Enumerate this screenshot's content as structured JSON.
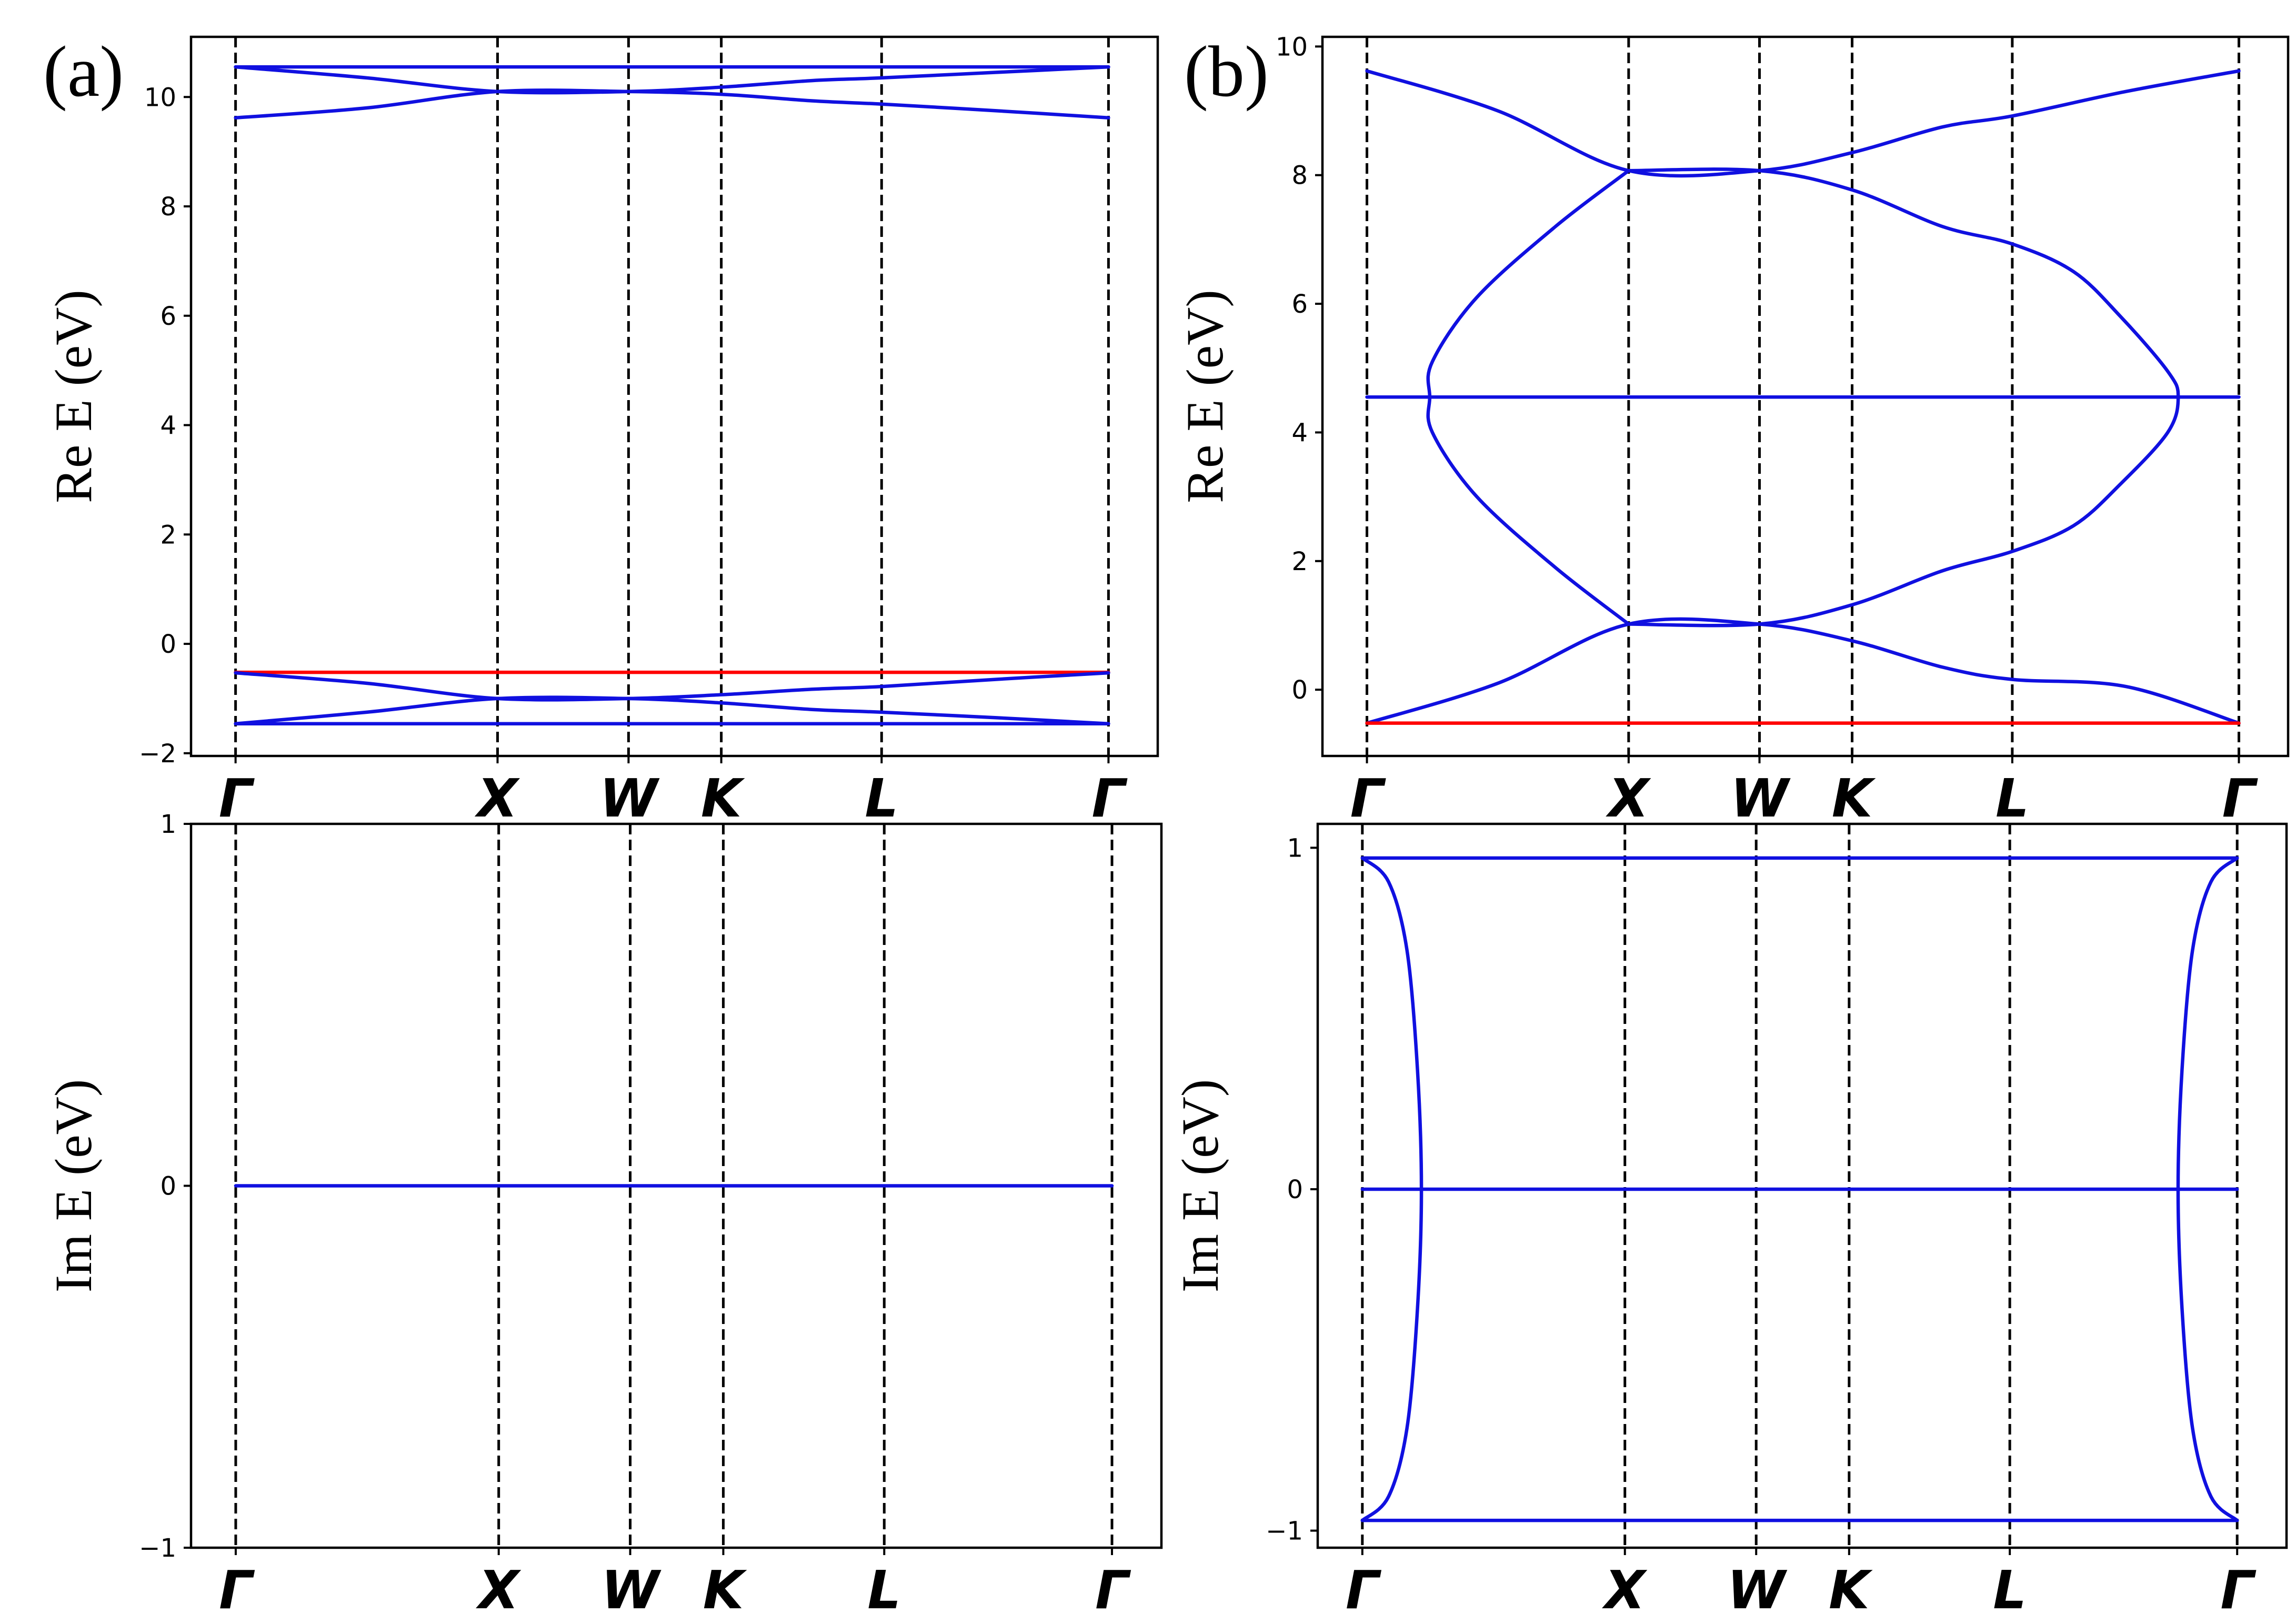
{
  "chart_data": [
    {
      "panel": "(a)",
      "type": "line",
      "ylabel": "Re E (eV)",
      "ylim": [
        -2.05,
        11.1
      ],
      "yticks": [
        -2,
        0,
        2,
        4,
        6,
        8,
        10
      ],
      "x_ticks": [
        "Γ",
        "X",
        "W",
        "K",
        "L",
        "Γ"
      ],
      "x_tick_positions": [
        0,
        1,
        1.5,
        1.854,
        2.466,
        3.332
      ],
      "xlim": [
        -0.17,
        3.52
      ],
      "grid": false,
      "series": [
        {
          "color": "#1010e0",
          "x": [
            0,
            1,
            1.5,
            1.854,
            2.466,
            3.332
          ],
          "y": [
            10.55,
            10.55,
            10.55,
            10.55,
            10.55,
            10.55
          ]
        },
        {
          "color": "#1010e0",
          "x": [
            0,
            0.5,
            1,
            1.5,
            1.854,
            2.2,
            2.466,
            2.9,
            3.332
          ],
          "y": [
            10.55,
            10.35,
            10.1,
            10.1,
            10.18,
            10.3,
            10.35,
            10.45,
            10.55
          ]
        },
        {
          "color": "#1010e0",
          "x": [
            0,
            0.5,
            1,
            1.5,
            1.854,
            2.2,
            2.466,
            2.9,
            3.332
          ],
          "y": [
            9.62,
            9.8,
            10.1,
            10.1,
            10.05,
            9.93,
            9.87,
            9.75,
            9.62
          ]
        },
        {
          "color": "#ff0000",
          "x": [
            0,
            3.332
          ],
          "y": [
            -0.52,
            -0.52
          ]
        },
        {
          "color": "#1010e0",
          "x": [
            0,
            0.5,
            1,
            1.5,
            1.854,
            2.2,
            2.466,
            2.9,
            3.332
          ],
          "y": [
            -0.53,
            -0.72,
            -1.0,
            -1.0,
            -0.93,
            -0.83,
            -0.78,
            -0.65,
            -0.53
          ]
        },
        {
          "color": "#1010e0",
          "x": [
            0,
            0.5,
            1,
            1.5,
            1.854,
            2.2,
            2.466,
            2.9,
            3.332
          ],
          "y": [
            -1.46,
            -1.25,
            -1.0,
            -1.0,
            -1.08,
            -1.2,
            -1.25,
            -1.35,
            -1.46
          ]
        },
        {
          "color": "#1010e0",
          "x": [
            0,
            1,
            1.5,
            1.854,
            2.466,
            3.332
          ],
          "y": [
            -1.46,
            -1.46,
            -1.46,
            -1.46,
            -1.46,
            -1.46
          ]
        }
      ]
    },
    {
      "panel": "(b)",
      "type": "line",
      "ylabel": "Re E (eV)",
      "ylim": [
        -1.03,
        10.15
      ],
      "yticks": [
        0,
        2,
        4,
        6,
        8,
        10
      ],
      "x_ticks": [
        "Γ",
        "X",
        "W",
        "K",
        "L",
        "Γ"
      ],
      "x_tick_positions": [
        0,
        1,
        1.5,
        1.854,
        2.466,
        3.332
      ],
      "xlim": [
        -0.17,
        3.52
      ],
      "grid": false,
      "series": [
        {
          "color": "#1010e0",
          "x": [
            0,
            0.5,
            1,
            1.5,
            1.854,
            2.2,
            2.466,
            2.9,
            3.332
          ],
          "y": [
            9.62,
            9.0,
            8.07,
            8.07,
            8.35,
            8.75,
            8.92,
            9.3,
            9.62
          ]
        },
        {
          "color": "#1010e0",
          "x": [
            1,
            0.72,
            0.42,
            0.25,
            0.24,
            0.25,
            0.42,
            0.72,
            1
          ],
          "y": [
            8.07,
            7.2,
            6.1,
            5.1,
            4.55,
            4.0,
            3.0,
            1.9,
            1.02
          ]
        },
        {
          "color": "#1010e0",
          "x": [
            1,
            1.5,
            1.854,
            2.2,
            2.466,
            2.7,
            2.88,
            3.06,
            3.1,
            3.06,
            2.88,
            2.7,
            2.466,
            2.2,
            1.854,
            1.5,
            1.0
          ],
          "y": [
            8.07,
            8.07,
            7.77,
            7.2,
            6.93,
            6.5,
            5.8,
            4.95,
            4.55,
            4.0,
            3.2,
            2.55,
            2.15,
            1.85,
            1.32,
            1.02,
            1.02
          ]
        },
        {
          "color": "#1010e0",
          "x": [
            0,
            3.332
          ],
          "y": [
            4.55,
            4.55
          ]
        },
        {
          "color": "#1010e0",
          "x": [
            0,
            0.5,
            1,
            1.5,
            1.854,
            2.2,
            2.466,
            2.9,
            3.332
          ],
          "y": [
            -0.52,
            0.1,
            1.02,
            1.02,
            0.76,
            0.35,
            0.16,
            0.05,
            -0.52
          ]
        },
        {
          "color": "#ff0000",
          "x": [
            0,
            3.332
          ],
          "y": [
            -0.52,
            -0.52
          ]
        }
      ]
    },
    {
      "type": "line",
      "ylabel": "Im E (eV)",
      "ylim": [
        -1,
        1
      ],
      "yticks": [
        -1,
        0,
        1
      ],
      "x_ticks": [
        "Γ",
        "X",
        "W",
        "K",
        "L",
        "Γ"
      ],
      "x_tick_positions": [
        0,
        1,
        1.5,
        1.854,
        2.466,
        3.332
      ],
      "xlim": [
        -0.17,
        3.52
      ],
      "grid": false,
      "series": [
        {
          "color": "#1010e0",
          "x": [
            0,
            3.332
          ],
          "y": [
            0,
            0
          ]
        }
      ]
    },
    {
      "type": "line",
      "ylabel": "Im E (eV)",
      "ylim": [
        -1.05,
        1.07
      ],
      "yticks": [
        -1,
        0,
        1
      ],
      "x_ticks": [
        "Γ",
        "X",
        "W",
        "K",
        "L",
        "Γ"
      ],
      "x_tick_positions": [
        0,
        1,
        1.5,
        1.854,
        2.466,
        3.332
      ],
      "xlim": [
        -0.17,
        3.52
      ],
      "grid": false,
      "series": [
        {
          "color": "#1010e0",
          "x": [
            0,
            3.332
          ],
          "y": [
            0.97,
            0.97
          ]
        },
        {
          "color": "#1010e0",
          "x": [
            0,
            3.332
          ],
          "y": [
            0,
            0
          ]
        },
        {
          "color": "#1010e0",
          "x": [
            0,
            3.332
          ],
          "y": [
            -0.97,
            -0.97
          ]
        },
        {
          "color": "#1010e0",
          "x": [
            0,
            0.1,
            0.17,
            0.21,
            0.225,
            0.21,
            0.17,
            0.1,
            0
          ],
          "y": [
            0.97,
            0.9,
            0.7,
            0.35,
            0,
            -0.35,
            -0.7,
            -0.9,
            -0.97
          ]
        },
        {
          "color": "#1010e0",
          "x": [
            3.332,
            3.232,
            3.162,
            3.122,
            3.107,
            3.122,
            3.162,
            3.232,
            3.332
          ],
          "y": [
            0.97,
            0.9,
            0.7,
            0.35,
            0,
            -0.35,
            -0.7,
            -0.9,
            -0.97
          ]
        }
      ]
    }
  ]
}
